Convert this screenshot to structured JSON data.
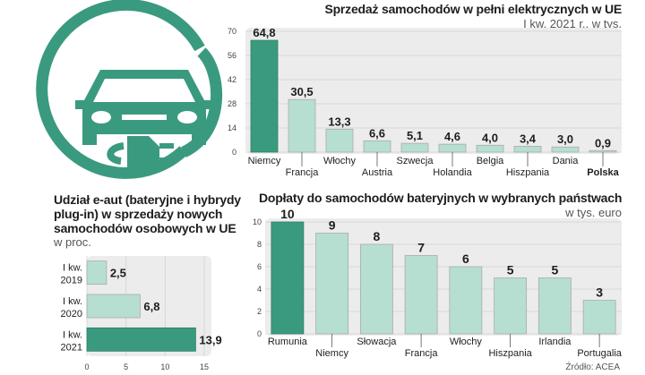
{
  "colors": {
    "accent": "#3a9a7f",
    "light": "#b6dfd1",
    "bar_stroke": "#aaaaaa",
    "panel": "#ececec"
  },
  "icon": "electric-car-charging-icon",
  "chart_data": [
    {
      "id": "ev_sales",
      "type": "bar",
      "title": "Sprzedaż samochodów w pełni elektrycznych w UE",
      "subtitle": "I kw. 2021 r., w tys.",
      "categories": [
        "Niemcy",
        "Francja",
        "Włochy",
        "Austria",
        "Szwecja",
        "Holandia",
        "Belgia",
        "Hiszpania",
        "Dania",
        "Polska"
      ],
      "values": [
        64.8,
        30.5,
        13.3,
        6.6,
        5.1,
        4.6,
        4.0,
        3.4,
        3.0,
        0.9
      ],
      "value_labels": [
        "64,8",
        "30,5",
        "13,3",
        "6,6",
        "5,1",
        "4,6",
        "4,0",
        "3,4",
        "3,0",
        "0,9"
      ],
      "highlight_index": 0,
      "bold_category_index": 9,
      "yticks": [
        "0",
        "14",
        "28",
        "42",
        "56",
        "70"
      ],
      "ylim": [
        0,
        70
      ],
      "grid": true
    },
    {
      "id": "ev_share",
      "type": "bar",
      "orientation": "horizontal",
      "title_lines": [
        "Udział e-aut (bateryjne i hybrydy",
        "plug-in) w sprzedaży nowych",
        "samochodów osobowych w UE"
      ],
      "subtitle": "w proc.",
      "categories": [
        [
          "I kw.",
          "2019"
        ],
        [
          "I kw.",
          "2020"
        ],
        [
          "I kw.",
          "2021"
        ]
      ],
      "values": [
        2.5,
        6.8,
        13.9
      ],
      "value_labels": [
        "2,5",
        "6,8",
        "13,9"
      ],
      "highlight_index": 2,
      "xticks": [
        "0",
        "5",
        "10",
        "15"
      ],
      "xlim": [
        0,
        15
      ],
      "grid": true
    },
    {
      "id": "subsidies",
      "type": "bar",
      "title": "Dopłaty do samochodów bateryjnych w wybranych państwach",
      "subtitle": "w tys. euro",
      "categories": [
        "Rumunia",
        "Niemcy",
        "Słowacja",
        "Francja",
        "Włochy",
        "Hiszpania",
        "Irlandia",
        "Portugalia"
      ],
      "values": [
        10,
        9,
        8,
        7,
        6,
        5,
        5,
        3
      ],
      "value_labels": [
        "10",
        "9",
        "8",
        "7",
        "6",
        "5",
        "5",
        "3"
      ],
      "highlight_index": 0,
      "yticks": [
        "0",
        "2",
        "4",
        "6",
        "8",
        "10"
      ],
      "ylim": [
        0,
        10
      ],
      "grid": true
    }
  ],
  "source": "Źródło: ACEA"
}
